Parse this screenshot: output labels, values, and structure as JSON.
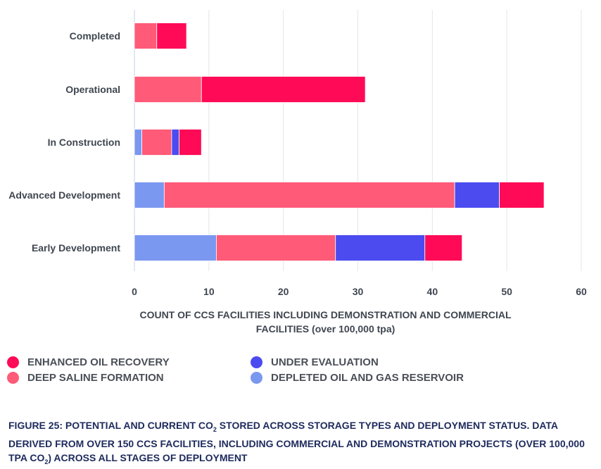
{
  "chart_data": {
    "type": "bar",
    "orientation": "horizontal",
    "stacked": true,
    "categories": [
      "Completed",
      "Operational",
      "In Construction",
      "Advanced Development",
      "Early Development"
    ],
    "series": [
      {
        "name": "DEPLETED OIL AND GAS RESERVOIR",
        "color": "#7b98f0",
        "values": [
          0,
          0,
          1,
          4,
          11
        ]
      },
      {
        "name": "DEEP SALINE FORMATION",
        "color": "#ff5a78",
        "values": [
          3,
          9,
          4,
          39,
          16
        ]
      },
      {
        "name": "UNDER EVALUATION",
        "color": "#4b4bf0",
        "values": [
          0,
          0,
          1,
          6,
          12
        ]
      },
      {
        "name": "ENHANCED OIL RECOVERY",
        "color": "#ff0a57",
        "values": [
          4,
          22,
          3,
          6,
          5
        ]
      }
    ],
    "xlim": [
      0,
      60
    ],
    "xticks": [
      "0",
      "10",
      "20",
      "30",
      "40",
      "50",
      "60"
    ],
    "grid": true,
    "xlabel_line1": "COUNT OF CCS FACILITIES INCLUDING DEMONSTRATION AND COMMERCIAL",
    "xlabel_line2": "FACILITIES (over 100,000 tpa)",
    "legend": [
      {
        "label": "ENHANCED OIL RECOVERY",
        "color": "#ff0a57"
      },
      {
        "label": "UNDER EVALUATION",
        "color": "#4b4bf0"
      },
      {
        "label": "DEEP SALINE FORMATION",
        "color": "#ff5a78"
      },
      {
        "label": "DEPLETED OIL AND GAS RESERVOIR",
        "color": "#7b98f0"
      }
    ]
  },
  "caption": {
    "part1": "FIGURE 25: POTENTIAL AND CURRENT CO",
    "sub1": "2",
    "part2": " STORED ACROSS STORAGE TYPES AND DEPLOYMENT STATUS. DATA DERIVED FROM OVER 150 CCS FACILITIES, INCLUDING COMMERCIAL AND DEMONSTRATION PROJECTS (OVER 100,000 TPA CO",
    "sub2": "2",
    "part3": ") ACROSS ALL STAGES OF DEPLOYMENT"
  }
}
